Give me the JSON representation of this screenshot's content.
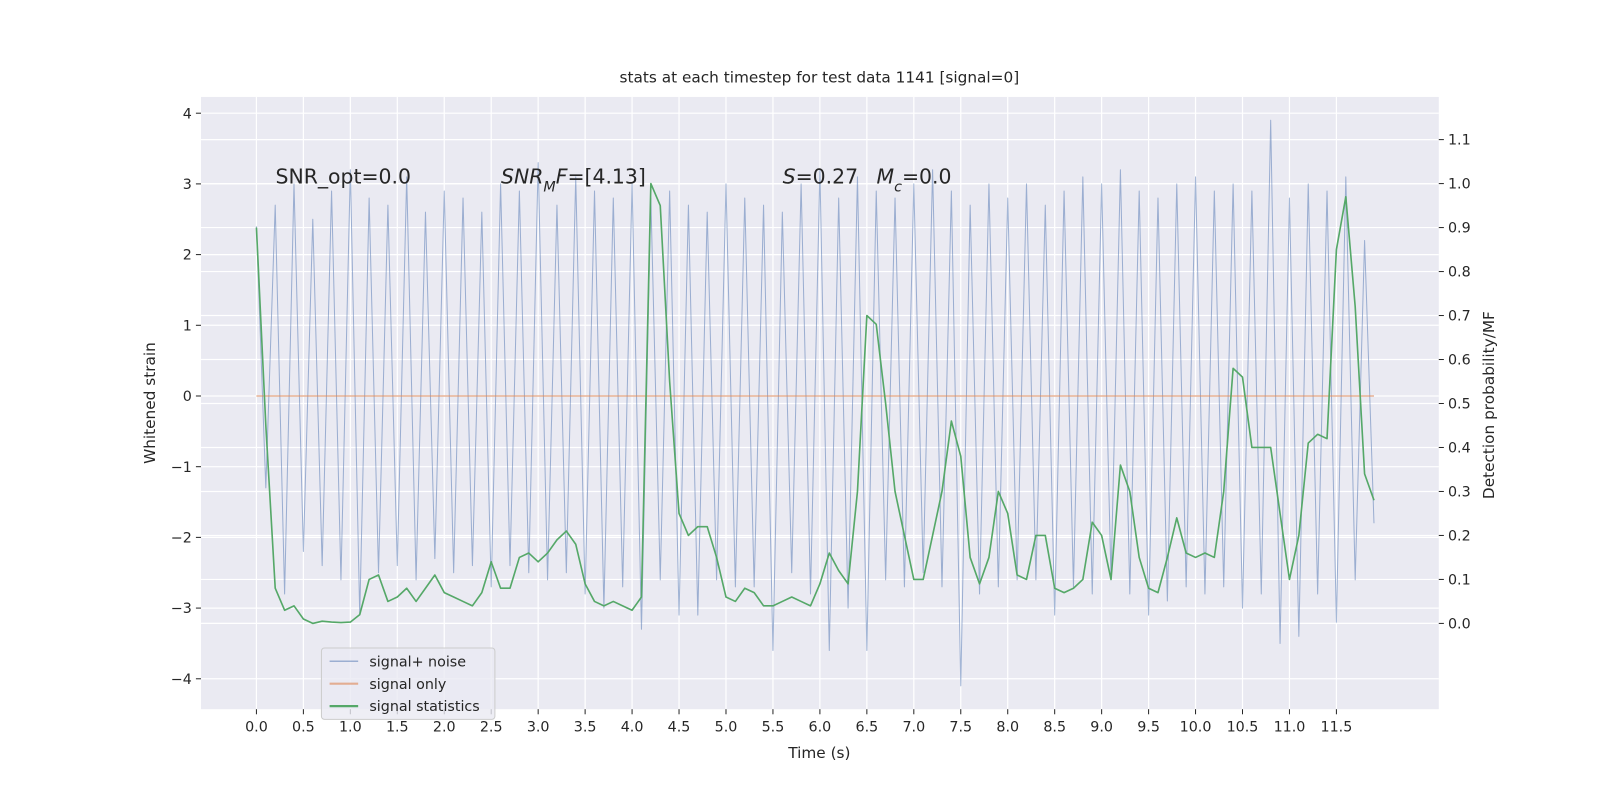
{
  "chart_data": {
    "type": "line",
    "title": "stats at each timestep for test data 1141 [signal=0]",
    "x_label": "Time (s)",
    "y_label": "Whitened strain",
    "y2_label": "Detection probability/MF",
    "x": [
      0.0,
      0.1,
      0.2,
      0.3,
      0.4,
      0.5,
      0.6,
      0.7,
      0.8,
      0.9,
      1.0,
      1.1,
      1.2,
      1.3,
      1.4,
      1.5,
      1.6,
      1.7,
      1.8,
      1.9,
      2.0,
      2.1,
      2.2,
      2.3,
      2.4,
      2.5,
      2.6,
      2.7,
      2.8,
      2.9,
      3.0,
      3.1,
      3.2,
      3.3,
      3.4,
      3.5,
      3.6,
      3.7,
      3.8,
      3.9,
      4.0,
      4.1,
      4.2,
      4.3,
      4.4,
      4.5,
      4.6,
      4.7,
      4.8,
      4.9,
      5.0,
      5.1,
      5.2,
      5.3,
      5.4,
      5.5,
      5.6,
      5.7,
      5.8,
      5.9,
      6.0,
      6.1,
      6.2,
      6.3,
      6.4,
      6.5,
      6.6,
      6.7,
      6.8,
      6.9,
      7.0,
      7.1,
      7.2,
      7.3,
      7.4,
      7.5,
      7.6,
      7.7,
      7.8,
      7.9,
      8.0,
      8.1,
      8.2,
      8.3,
      8.4,
      8.5,
      8.6,
      8.7,
      8.8,
      8.9,
      9.0,
      9.1,
      9.2,
      9.3,
      9.4,
      9.5,
      9.6,
      9.7,
      9.8,
      9.9,
      10.0,
      10.1,
      10.2,
      10.3,
      10.4,
      10.5,
      10.6,
      10.7,
      10.8,
      10.9,
      11.0,
      11.1,
      11.2,
      11.3,
      11.4,
      11.5,
      11.6,
      11.7,
      11.8,
      11.9
    ],
    "series": [
      {
        "name": "signal+ noise",
        "color": "#4c72b0",
        "values": [
          2.4,
          -1.3,
          2.7,
          -2.8,
          3.0,
          -2.2,
          2.5,
          -2.4,
          2.9,
          -2.6,
          3.2,
          -3.1,
          2.8,
          -2.5,
          2.7,
          -2.4,
          3.1,
          -2.6,
          2.6,
          -2.3,
          2.9,
          -2.5,
          2.8,
          -2.4,
          2.6,
          -2.7,
          3.0,
          -2.4,
          2.9,
          -2.5,
          3.3,
          -2.6,
          2.7,
          -2.5,
          3.1,
          -2.8,
          2.9,
          -3.0,
          2.8,
          -2.7,
          3.0,
          -3.3,
          2.8,
          -2.6,
          2.9,
          -3.1,
          2.7,
          -3.1,
          2.6,
          -2.6,
          3.0,
          -2.7,
          2.8,
          -2.7,
          2.7,
          -3.6,
          2.6,
          -2.5,
          3.0,
          -2.8,
          3.2,
          -3.6,
          2.8,
          -3.0,
          3.1,
          -3.6,
          2.9,
          -2.6,
          2.8,
          -2.7,
          3.0,
          -2.5,
          3.2,
          -2.7,
          2.9,
          -4.1,
          2.7,
          -2.8,
          3.0,
          -2.7,
          2.8,
          -2.6,
          3.0,
          -2.6,
          2.7,
          -3.1,
          2.9,
          -2.7,
          3.1,
          -2.8,
          3.0,
          -2.6,
          3.2,
          -2.8,
          2.9,
          -3.1,
          2.8,
          -2.9,
          3.0,
          -2.7,
          3.1,
          -2.8,
          2.9,
          -2.7,
          3.0,
          -3.0,
          2.9,
          -2.8,
          3.9,
          -3.5,
          2.8,
          -3.4,
          3.0,
          -2.8,
          2.9,
          -3.2,
          3.1,
          -2.6,
          2.2,
          -1.8
        ]
      },
      {
        "name": "signal only",
        "color": "#dd8452",
        "values": [
          0,
          0,
          0,
          0,
          0,
          0,
          0,
          0,
          0,
          0,
          0,
          0,
          0,
          0,
          0,
          0,
          0,
          0,
          0,
          0,
          0,
          0,
          0,
          0,
          0,
          0,
          0,
          0,
          0,
          0,
          0,
          0,
          0,
          0,
          0,
          0,
          0,
          0,
          0,
          0,
          0,
          0,
          0,
          0,
          0,
          0,
          0,
          0,
          0,
          0,
          0,
          0,
          0,
          0,
          0,
          0,
          0,
          0,
          0,
          0,
          0,
          0,
          0,
          0,
          0,
          0,
          0,
          0,
          0,
          0,
          0,
          0,
          0,
          0,
          0,
          0,
          0,
          0,
          0,
          0,
          0,
          0,
          0,
          0,
          0,
          0,
          0,
          0,
          0,
          0,
          0,
          0,
          0,
          0,
          0,
          0,
          0,
          0,
          0,
          0,
          0,
          0,
          0,
          0,
          0,
          0,
          0,
          0,
          0,
          0,
          0,
          0,
          0,
          0,
          0,
          0,
          0,
          0,
          0,
          0
        ]
      },
      {
        "name": "signal statistics",
        "color": "#55a868",
        "axis": "y2",
        "values": [
          0.9,
          0.45,
          0.08,
          0.03,
          0.04,
          0.01,
          0.0,
          0.005,
          0.003,
          0.002,
          0.003,
          0.02,
          0.1,
          0.11,
          0.05,
          0.06,
          0.08,
          0.05,
          0.08,
          0.11,
          0.07,
          0.06,
          0.05,
          0.04,
          0.07,
          0.14,
          0.08,
          0.08,
          0.15,
          0.16,
          0.14,
          0.16,
          0.19,
          0.21,
          0.18,
          0.09,
          0.05,
          0.04,
          0.05,
          0.04,
          0.03,
          0.06,
          1.0,
          0.95,
          0.55,
          0.25,
          0.2,
          0.22,
          0.22,
          0.15,
          0.06,
          0.05,
          0.08,
          0.07,
          0.04,
          0.04,
          0.05,
          0.06,
          0.05,
          0.04,
          0.09,
          0.16,
          0.12,
          0.09,
          0.3,
          0.7,
          0.68,
          0.5,
          0.3,
          0.2,
          0.1,
          0.1,
          0.2,
          0.3,
          0.46,
          0.38,
          0.15,
          0.09,
          0.15,
          0.3,
          0.25,
          0.11,
          0.1,
          0.2,
          0.2,
          0.08,
          0.07,
          0.08,
          0.1,
          0.23,
          0.2,
          0.1,
          0.36,
          0.3,
          0.15,
          0.08,
          0.07,
          0.15,
          0.24,
          0.16,
          0.15,
          0.16,
          0.15,
          0.3,
          0.58,
          0.56,
          0.4,
          0.4,
          0.4,
          0.25,
          0.1,
          0.2,
          0.41,
          0.43,
          0.42,
          0.85,
          0.97,
          0.72,
          0.34,
          0.28
        ]
      }
    ],
    "xlim": [
      -0.59,
      12.59
    ],
    "xticks": [
      {
        "value": 0,
        "label": "0.0"
      },
      0.5,
      {
        "value": 1,
        "label": "1.0"
      },
      1.5,
      {
        "value": 2,
        "label": "2.0"
      },
      2.5,
      {
        "value": 3,
        "label": "3.0"
      },
      3.5,
      {
        "value": 4,
        "label": "4.0"
      },
      4.5,
      {
        "value": 5,
        "label": "5.0"
      },
      5.5,
      {
        "value": 6,
        "label": "6.0"
      },
      6.5,
      {
        "value": 7,
        "label": "7.0"
      },
      7.5,
      {
        "value": 8,
        "label": "8.0"
      },
      8.5,
      {
        "value": 9,
        "label": "9.0"
      },
      9.5,
      {
        "value": 10,
        "label": "10.0"
      },
      10.5,
      {
        "value": 11,
        "label": "11.0"
      },
      11.5
    ],
    "ylim": [
      -4.43,
      4.23
    ],
    "yticks": [
      {
        "value": -4,
        "label": "−4"
      },
      {
        "value": -3,
        "label": "−3"
      },
      {
        "value": -2,
        "label": "−2"
      },
      {
        "value": -1,
        "label": "−1"
      },
      0,
      1,
      2,
      3,
      4
    ],
    "y2lim": [
      -0.195,
      1.197
    ],
    "y2ticks": [
      {
        "value": 0,
        "label": "0.0"
      },
      0.1,
      0.2,
      0.3,
      0.4,
      0.5,
      0.6,
      0.7,
      0.8,
      0.9,
      {
        "value": 1,
        "label": "1.0"
      },
      1.1
    ],
    "grid": true,
    "legend": "lower left",
    "annotations": [
      [
        {
          "text": "SNR_opt=0.0"
        }
      ],
      [
        {
          "text": "SNR",
          "style": "italic"
        },
        {
          "text": "M",
          "style": "italic-sub"
        },
        {
          "text": "F",
          "style": "italic"
        },
        {
          "text": "=[4.13]"
        }
      ],
      [
        {
          "text": "S",
          "style": "italic"
        },
        {
          "text": "=0.27"
        }
      ],
      [
        {
          "text": "M",
          "style": "italic"
        },
        {
          "text": "c",
          "style": "italic-sub"
        },
        {
          "text": "=0.0"
        }
      ]
    ]
  }
}
